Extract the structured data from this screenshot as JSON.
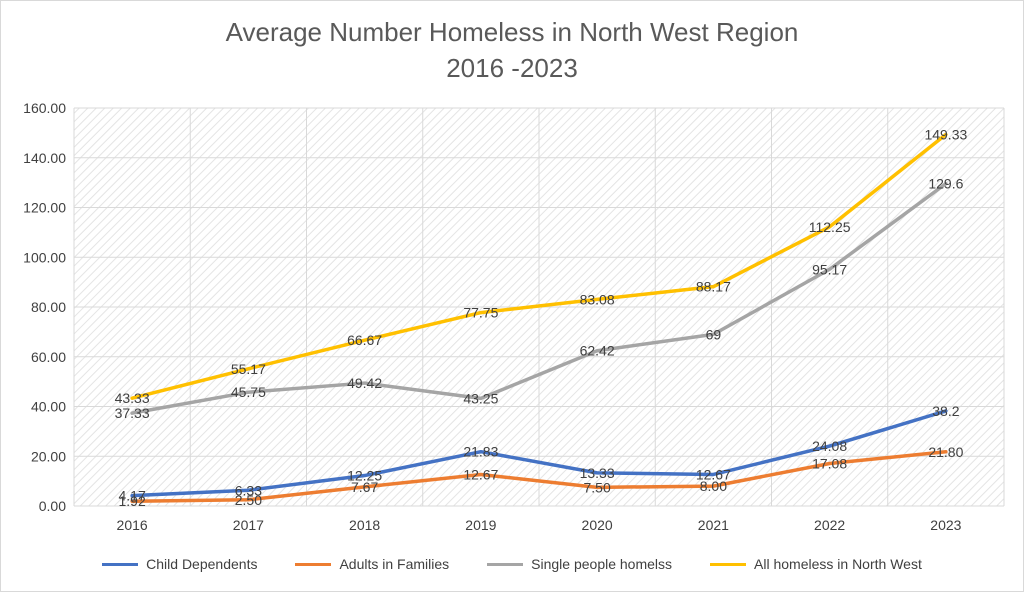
{
  "chart_data": {
    "type": "line",
    "title": "Average Number Homeless in North West Region",
    "subtitle": "2016 -2023",
    "categories": [
      "2016",
      "2017",
      "2018",
      "2019",
      "2020",
      "2021",
      "2022",
      "2023"
    ],
    "ylim": [
      0,
      160
    ],
    "ytick_step": 20,
    "ytick_labels": [
      "0.00",
      "20.00",
      "40.00",
      "60.00",
      "80.00",
      "100.00",
      "120.00",
      "140.00",
      "160.00"
    ],
    "grid": true,
    "legend_position": "bottom",
    "series": [
      {
        "name": "Child Dependents",
        "color": "#4472C4",
        "values": [
          4.17,
          6.33,
          12.25,
          21.83,
          13.33,
          12.67,
          24.08,
          38.2
        ],
        "labels": [
          "4.17",
          "6.33",
          "12.25",
          "21.83",
          "13.33",
          "12.67",
          "24.08",
          "38.2"
        ]
      },
      {
        "name": "Adults in Families",
        "color": "#ED7D31",
        "values": [
          1.92,
          2.5,
          7.67,
          12.67,
          7.5,
          8.0,
          17.08,
          21.8
        ],
        "labels": [
          "1.92",
          "2.50",
          "7.67",
          "12.67",
          "7.50",
          "8.00",
          "17.08",
          "21.80"
        ]
      },
      {
        "name": "Single people homelss",
        "color": "#A5A5A5",
        "values": [
          37.33,
          45.75,
          49.42,
          43.25,
          62.42,
          69,
          95.17,
          129.6
        ],
        "labels": [
          "37.33",
          "45.75",
          "49.42",
          "43.25",
          "62.42",
          "69",
          "95.17",
          "129.6"
        ]
      },
      {
        "name": "All homeless in North West",
        "color": "#FFC000",
        "values": [
          43.33,
          55.17,
          66.67,
          77.75,
          83.08,
          88.17,
          112.25,
          149.33
        ],
        "labels": [
          "43.33",
          "55.17",
          "66.67",
          "77.75",
          "83.08",
          "88.17",
          "112.25",
          "149.33"
        ]
      }
    ]
  }
}
